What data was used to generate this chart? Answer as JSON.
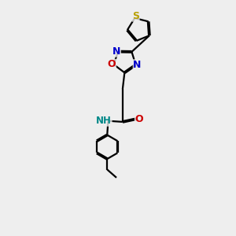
{
  "bg_color": "#eeeeee",
  "bond_color": "#000000",
  "S_color": "#b8a000",
  "N_color": "#0000cc",
  "O_color": "#cc0000",
  "NH_color": "#008888",
  "line_width": 1.6,
  "figsize": [
    3.0,
    3.0
  ],
  "dpi": 100,
  "xlim": [
    0,
    6
  ],
  "ylim": [
    0,
    12
  ]
}
